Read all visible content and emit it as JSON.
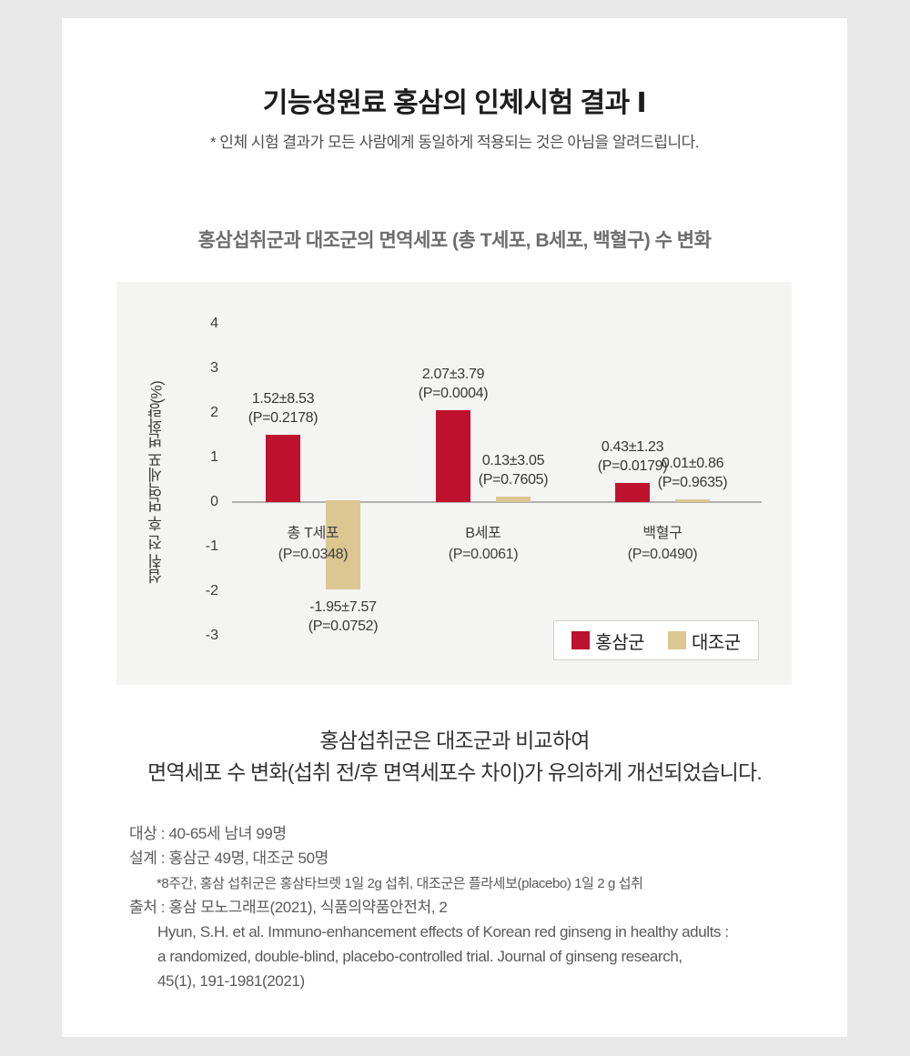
{
  "colors": {
    "page_bg": "#e8e8e8",
    "card_bg": "#ffffff",
    "panel_bg": "#f4f4f3",
    "ginseng_red": "#be112d",
    "control_tan": "#dcc793",
    "axis_gray": "#b1b0ae"
  },
  "header": {
    "title": "기능성원료 홍삼의 인체시험 결과 Ⅰ",
    "disclaimer": "* 인체 시험 결과가 모든 사람에게 동일하게 적용되는 것은 아님을 알려드립니다."
  },
  "section": {
    "chart_heading": "홍삼섭취군과 대조군의 면역세포 (총 T세포, B세포, 백혈구) 수 변화"
  },
  "chart_data": {
    "type": "bar",
    "title": "홍삼섭취군과 대조군의 면역세포 (총 T세포, B세포, 백혈구) 수 변화",
    "ylabel": "섭취 전 후 면역세포 변화량(%)",
    "ylim": [
      -3,
      4
    ],
    "yticks": [
      4,
      3,
      2,
      1,
      0,
      -1,
      -2,
      -3
    ],
    "grid": false,
    "legend_position": "bottom-right",
    "categories": [
      "총 T세포",
      "B세포",
      "백혈구"
    ],
    "category_p_values": [
      "(P=0.0348)",
      "(P=0.0061)",
      "(P=0.0490)"
    ],
    "series": [
      {
        "name": "홍삼군",
        "color": "#be112d",
        "values": [
          1.52,
          2.07,
          0.43
        ],
        "value_labels": [
          "1.52±8.53",
          "2.07±3.79",
          "0.43±1.23"
        ],
        "p_labels": [
          "(P=0.2178)",
          "(P=0.0004)",
          "(P=0.0179)"
        ]
      },
      {
        "name": "대조군",
        "color": "#dcc793",
        "values": [
          -1.95,
          0.13,
          0.01
        ],
        "value_labels": [
          "-1.95±7.57",
          "0.13±3.05",
          "0.01±0.86"
        ],
        "p_labels": [
          "(P=0.0752)",
          "(P=0.7605)",
          "(P=0.9635)"
        ]
      }
    ]
  },
  "conclusion": {
    "line1": "홍삼섭취군은 대조군과 비교하여",
    "line2": "면역세포 수 변화(섭취 전/후 면역세포수 차이)가 유의하게 개선되었습니다."
  },
  "study_details": {
    "lines": [
      "대상 : 40-65세 남녀 99명",
      "설계 : 홍삼군 49명, 대조군 50명",
      "*8주간, 홍삼 섭취군은 홍삼타브렛 1일 2g 섭취, 대조군은 플라세보(placebo) 1일 2 g 섭취",
      "출처 : 홍삼 모노그래프(2021), 식품의약품안전처, 2",
      "Hyun, S.H. et al. Immuno-enhancement effects of Korean red ginseng in healthy adults :",
      "a randomized, double-blind, placebo-controlled trial. Journal of ginseng research,",
      "45(1), 191-1981(2021)"
    ]
  }
}
